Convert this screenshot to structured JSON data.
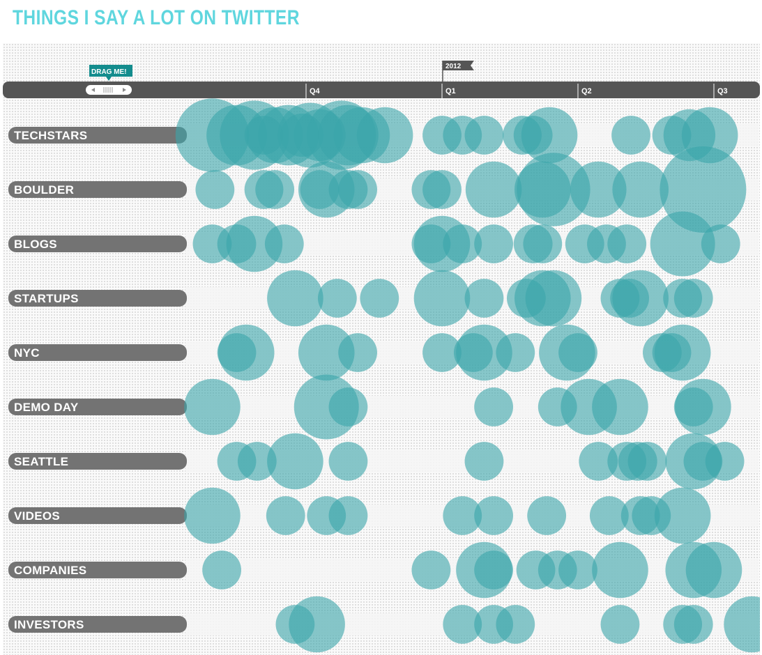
{
  "title": "THINGS I SAY A LOT ON TWITTER",
  "drag_label": "DRAG ME!",
  "year_flag": "2012",
  "colors": {
    "title": "#5fd6de",
    "bubble": "#3aa5aa",
    "track": "#555555",
    "row_label_bg": "#737373",
    "drag_label_bg": "#138c8d"
  },
  "chart_data": {
    "type": "scatter",
    "title": "THINGS I SAY A LOT ON TWITTER",
    "x_ticks": [
      {
        "label": "Q4",
        "x": 0
      },
      {
        "label": "Q1",
        "x": 1
      },
      {
        "label": "Q2",
        "x": 2
      },
      {
        "label": "Q3",
        "x": 3
      }
    ],
    "xlim": [
      -0.89,
      3.28
    ],
    "year_marker": {
      "label": "2012",
      "x": 1
    },
    "size_scale": "bubble diameter proportional to mention frequency",
    "series": [
      {
        "name": "TECHSTARS",
        "points": [
          {
            "x": -0.69,
            "r": 0.17
          },
          {
            "x": -0.51,
            "r": 0.14
          },
          {
            "x": -0.38,
            "r": 0.16
          },
          {
            "x": -0.31,
            "r": 0.09
          },
          {
            "x": -0.23,
            "r": 0.13
          },
          {
            "x": -0.13,
            "r": 0.14
          },
          {
            "x": -0.03,
            "r": 0.1
          },
          {
            "x": 0.03,
            "r": 0.15
          },
          {
            "x": 0.1,
            "r": 0.12
          },
          {
            "x": 0.26,
            "r": 0.16
          },
          {
            "x": 0.31,
            "r": 0.14
          },
          {
            "x": 0.41,
            "r": 0.13
          },
          {
            "x": 0.58,
            "r": 0.13
          },
          {
            "x": 1.0,
            "r": 0.09
          },
          {
            "x": 1.15,
            "r": 0.09
          },
          {
            "x": 1.31,
            "r": 0.09
          },
          {
            "x": 1.59,
            "r": 0.09
          },
          {
            "x": 1.67,
            "r": 0.09
          },
          {
            "x": 1.79,
            "r": 0.13
          },
          {
            "x": 2.39,
            "r": 0.09
          },
          {
            "x": 2.69,
            "r": 0.09
          },
          {
            "x": 2.82,
            "r": 0.12
          },
          {
            "x": 2.97,
            "r": 0.13
          }
        ]
      },
      {
        "name": "BOULDER",
        "points": [
          {
            "x": -0.67,
            "r": 0.09
          },
          {
            "x": -0.31,
            "r": 0.09
          },
          {
            "x": -0.23,
            "r": 0.09
          },
          {
            "x": 0.1,
            "r": 0.09
          },
          {
            "x": 0.15,
            "r": 0.13
          },
          {
            "x": 0.31,
            "r": 0.09
          },
          {
            "x": 0.38,
            "r": 0.09
          },
          {
            "x": 0.92,
            "r": 0.09
          },
          {
            "x": 1.0,
            "r": 0.09
          },
          {
            "x": 1.38,
            "r": 0.13
          },
          {
            "x": 1.74,
            "r": 0.13
          },
          {
            "x": 1.82,
            "r": 0.17
          },
          {
            "x": 2.15,
            "r": 0.13
          },
          {
            "x": 2.46,
            "r": 0.13
          },
          {
            "x": 2.92,
            "r": 0.2
          }
        ]
      },
      {
        "name": "BLOGS",
        "points": [
          {
            "x": -0.69,
            "r": 0.09
          },
          {
            "x": -0.51,
            "r": 0.09
          },
          {
            "x": -0.38,
            "r": 0.13
          },
          {
            "x": -0.16,
            "r": 0.09
          },
          {
            "x": 0.92,
            "r": 0.09
          },
          {
            "x": 1.0,
            "r": 0.13
          },
          {
            "x": 1.15,
            "r": 0.09
          },
          {
            "x": 1.38,
            "r": 0.09
          },
          {
            "x": 1.67,
            "r": 0.09
          },
          {
            "x": 1.74,
            "r": 0.09
          },
          {
            "x": 2.05,
            "r": 0.09
          },
          {
            "x": 2.21,
            "r": 0.09
          },
          {
            "x": 2.36,
            "r": 0.09
          },
          {
            "x": 2.77,
            "r": 0.15
          },
          {
            "x": 3.05,
            "r": 0.09
          }
        ]
      },
      {
        "name": "STARTUPS",
        "points": [
          {
            "x": -0.08,
            "r": 0.13
          },
          {
            "x": 0.23,
            "r": 0.09
          },
          {
            "x": 0.54,
            "r": 0.09
          },
          {
            "x": 1.0,
            "r": 0.13
          },
          {
            "x": 1.31,
            "r": 0.09
          },
          {
            "x": 1.62,
            "r": 0.09
          },
          {
            "x": 1.74,
            "r": 0.13
          },
          {
            "x": 1.82,
            "r": 0.13
          },
          {
            "x": 2.31,
            "r": 0.09
          },
          {
            "x": 2.38,
            "r": 0.09
          },
          {
            "x": 2.46,
            "r": 0.13
          },
          {
            "x": 2.77,
            "r": 0.09
          },
          {
            "x": 2.85,
            "r": 0.09
          }
        ]
      },
      {
        "name": "NYC",
        "points": [
          {
            "x": -0.51,
            "r": 0.09
          },
          {
            "x": -0.44,
            "r": 0.13
          },
          {
            "x": 0.15,
            "r": 0.13
          },
          {
            "x": 0.38,
            "r": 0.09
          },
          {
            "x": 1.0,
            "r": 0.09
          },
          {
            "x": 1.23,
            "r": 0.09
          },
          {
            "x": 1.31,
            "r": 0.13
          },
          {
            "x": 1.54,
            "r": 0.09
          },
          {
            "x": 1.92,
            "r": 0.13
          },
          {
            "x": 2.0,
            "r": 0.09
          },
          {
            "x": 2.62,
            "r": 0.09
          },
          {
            "x": 2.69,
            "r": 0.09
          },
          {
            "x": 2.77,
            "r": 0.13
          }
        ]
      },
      {
        "name": "DEMO DAY",
        "points": [
          {
            "x": -0.69,
            "r": 0.13
          },
          {
            "x": 0.15,
            "r": 0.15
          },
          {
            "x": 0.31,
            "r": 0.09
          },
          {
            "x": 1.38,
            "r": 0.09
          },
          {
            "x": 1.85,
            "r": 0.09
          },
          {
            "x": 2.08,
            "r": 0.13
          },
          {
            "x": 2.31,
            "r": 0.13
          },
          {
            "x": 2.85,
            "r": 0.09
          },
          {
            "x": 2.92,
            "r": 0.13
          }
        ]
      },
      {
        "name": "SEATTLE",
        "points": [
          {
            "x": -0.51,
            "r": 0.09
          },
          {
            "x": -0.36,
            "r": 0.09
          },
          {
            "x": -0.08,
            "r": 0.13
          },
          {
            "x": 0.31,
            "r": 0.09
          },
          {
            "x": 1.31,
            "r": 0.09
          },
          {
            "x": 2.15,
            "r": 0.09
          },
          {
            "x": 2.36,
            "r": 0.09
          },
          {
            "x": 2.44,
            "r": 0.09
          },
          {
            "x": 2.51,
            "r": 0.09
          },
          {
            "x": 2.85,
            "r": 0.13
          },
          {
            "x": 2.92,
            "r": 0.09
          },
          {
            "x": 3.08,
            "r": 0.09
          }
        ]
      },
      {
        "name": "VIDEOS",
        "points": [
          {
            "x": -0.69,
            "r": 0.13
          },
          {
            "x": -0.15,
            "r": 0.09
          },
          {
            "x": 0.15,
            "r": 0.09
          },
          {
            "x": 0.31,
            "r": 0.09
          },
          {
            "x": 1.15,
            "r": 0.09
          },
          {
            "x": 1.38,
            "r": 0.09
          },
          {
            "x": 1.77,
            "r": 0.09
          },
          {
            "x": 2.23,
            "r": 0.09
          },
          {
            "x": 2.46,
            "r": 0.09
          },
          {
            "x": 2.54,
            "r": 0.09
          },
          {
            "x": 2.77,
            "r": 0.13
          }
        ]
      },
      {
        "name": "COMPANIES",
        "points": [
          {
            "x": -0.62,
            "r": 0.09
          },
          {
            "x": 0.92,
            "r": 0.09
          },
          {
            "x": 1.31,
            "r": 0.13
          },
          {
            "x": 1.38,
            "r": 0.09
          },
          {
            "x": 1.69,
            "r": 0.09
          },
          {
            "x": 1.85,
            "r": 0.09
          },
          {
            "x": 2.0,
            "r": 0.09
          },
          {
            "x": 2.31,
            "r": 0.13
          },
          {
            "x": 2.85,
            "r": 0.13
          },
          {
            "x": 3.0,
            "r": 0.13
          }
        ]
      },
      {
        "name": "INVESTORS",
        "points": [
          {
            "x": -0.08,
            "r": 0.09
          },
          {
            "x": 0.08,
            "r": 0.13
          },
          {
            "x": 1.15,
            "r": 0.09
          },
          {
            "x": 1.38,
            "r": 0.09
          },
          {
            "x": 1.54,
            "r": 0.09
          },
          {
            "x": 2.31,
            "r": 0.09
          },
          {
            "x": 2.77,
            "r": 0.09
          },
          {
            "x": 2.85,
            "r": 0.09
          },
          {
            "x": 3.28,
            "r": 0.13
          }
        ]
      }
    ]
  }
}
